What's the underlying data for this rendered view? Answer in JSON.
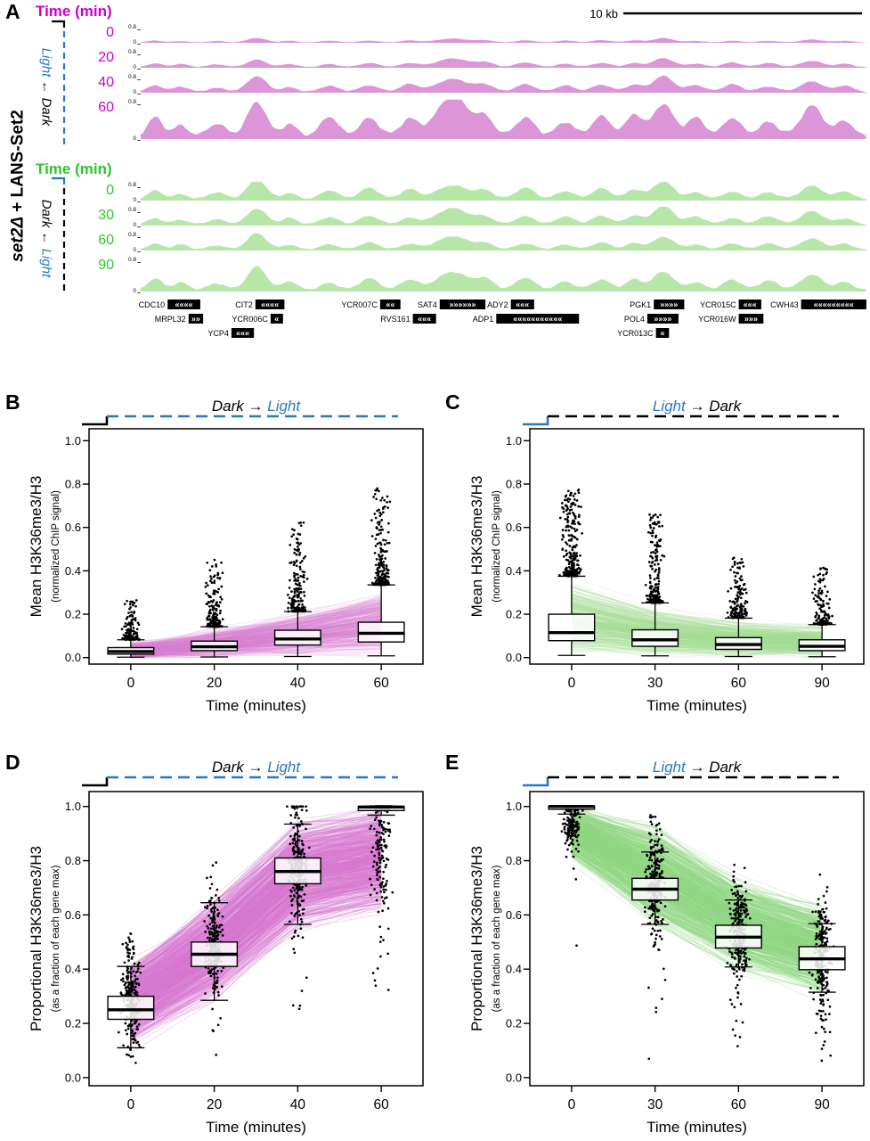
{
  "colors": {
    "magenta_fill": "#DC95D6",
    "magenta_text": "#CC00CC",
    "green_fill": "#B6E7A9",
    "green_text": "#2EC42E",
    "blue": "#2878C8",
    "black": "#000000",
    "pink_links_light": "rgba(219,131,213,0.16)",
    "pink_links_strong": "rgba(216,118,210,0.30)",
    "green_links_light": "rgba(165,222,152,0.18)",
    "green_links_strong": "rgba(146,214,134,0.30)"
  },
  "panel_a": {
    "label": "A",
    "strain": {
      "italic": "set2Δ",
      "rest": " + LANS-Set2"
    },
    "scale_bar": "10 kb",
    "sections": [
      {
        "time_header": "Time (min)",
        "times": [
          "0",
          "20",
          "40",
          "60"
        ],
        "transition": {
          "first": "Light",
          "arrow": "←",
          "second": "Dark"
        },
        "ymax": "0.8",
        "ymin": "0"
      },
      {
        "time_header": "Time (min)",
        "times": [
          "0",
          "30",
          "60",
          "90"
        ],
        "transition": {
          "first": "Dark",
          "arrow": "←",
          "second": "Light"
        },
        "ymax": "0.8",
        "ymin": "0"
      }
    ],
    "track_profile": {
      "peaks": [
        [
          0.02,
          0.45,
          0.01
        ],
        [
          0.055,
          0.3,
          0.01
        ],
        [
          0.105,
          0.32,
          0.012
        ],
        [
          0.16,
          1.0,
          0.013
        ],
        [
          0.205,
          0.35,
          0.01
        ],
        [
          0.26,
          0.4,
          0.012
        ],
        [
          0.315,
          0.5,
          0.013
        ],
        [
          0.37,
          0.45,
          0.012
        ],
        [
          0.43,
          0.85,
          0.022
        ],
        [
          0.475,
          0.45,
          0.012
        ],
        [
          0.53,
          0.5,
          0.013
        ],
        [
          0.585,
          0.4,
          0.012
        ],
        [
          0.635,
          0.55,
          0.013
        ],
        [
          0.68,
          0.45,
          0.011
        ],
        [
          0.72,
          0.95,
          0.014
        ],
        [
          0.765,
          0.4,
          0.012
        ],
        [
          0.815,
          0.45,
          0.012
        ],
        [
          0.865,
          0.4,
          0.013
        ],
        [
          0.925,
          0.7,
          0.015
        ],
        [
          0.97,
          0.4,
          0.011
        ]
      ],
      "amps_dark_to_light": [
        0.22,
        0.45,
        0.72,
        1.0
      ],
      "amps_light_to_dark": [
        1.0,
        0.85,
        0.72,
        0.6
      ]
    },
    "genes": [
      {
        "name": "CDC10",
        "dir": "left",
        "row": 0,
        "x": 0.037,
        "w": 0.045
      },
      {
        "name": "CIT2",
        "dir": "left",
        "row": 0,
        "x": 0.158,
        "w": 0.04
      },
      {
        "name": "YCR007C",
        "dir": "left",
        "row": 0,
        "x": 0.33,
        "w": 0.028
      },
      {
        "name": "SAT4",
        "dir": "right",
        "row": 0,
        "x": 0.412,
        "w": 0.063
      },
      {
        "name": "ADY2",
        "dir": "left",
        "row": 0,
        "x": 0.51,
        "w": 0.032
      },
      {
        "name": "PGK1",
        "dir": "right",
        "row": 0,
        "x": 0.707,
        "w": 0.042
      },
      {
        "name": "YCR015C",
        "dir": "left",
        "row": 0,
        "x": 0.824,
        "w": 0.031
      },
      {
        "name": "CWH43",
        "dir": "left",
        "row": 0,
        "x": 0.91,
        "w": 0.09
      },
      {
        "name": "MRPL32",
        "dir": "right",
        "row": 1,
        "x": 0.066,
        "w": 0.02
      },
      {
        "name": "YCR006C",
        "dir": "left",
        "row": 1,
        "x": 0.179,
        "w": 0.017
      },
      {
        "name": "RVS161",
        "dir": "left",
        "row": 1,
        "x": 0.375,
        "w": 0.032
      },
      {
        "name": "ADP1",
        "dir": "left",
        "row": 1,
        "x": 0.49,
        "w": 0.114
      },
      {
        "name": "POL4",
        "dir": "right",
        "row": 1,
        "x": 0.698,
        "w": 0.043
      },
      {
        "name": "YCR016W",
        "dir": "right",
        "row": 1,
        "x": 0.824,
        "w": 0.034
      },
      {
        "name": "YCP4",
        "dir": "left",
        "row": 2,
        "x": 0.125,
        "w": 0.031
      },
      {
        "name": "YCR013C",
        "dir": "left",
        "row": 2,
        "x": 0.71,
        "w": 0.018
      }
    ]
  },
  "chart_data": [
    {
      "panel": "B",
      "type": "boxplot",
      "title": {
        "first": "Dark",
        "arrow": "→",
        "second": "Light",
        "first_blue": false,
        "second_blue": true
      },
      "bracket": {
        "tail": "black",
        "dash": "blue"
      },
      "ylabel": "Mean H3K36me3/H3",
      "ylabel2": "(normalized ChIP signal)",
      "xlabel": "Time (minutes)",
      "categories": [
        "0",
        "20",
        "40",
        "60"
      ],
      "yticks": [
        "0.0",
        "0.2",
        "0.4",
        "0.6",
        "0.8",
        "1.0"
      ],
      "ylim": [
        -0.03,
        1.055
      ],
      "links": {
        "n": 430,
        "color_key": "pink_links_light",
        "noise": 0.015
      },
      "boxes": [
        {
          "lo": 0.002,
          "q1": 0.016,
          "median": 0.028,
          "q3": 0.046,
          "hi": 0.082,
          "band": [
            0.0,
            0.055
          ],
          "points": {
            "style": "above",
            "n": 140,
            "max": 0.27,
            "decay": 3.2,
            "spread": 12
          }
        },
        {
          "lo": 0.003,
          "q1": 0.032,
          "median": 0.05,
          "q3": 0.076,
          "hi": 0.142,
          "band": [
            0.005,
            0.12
          ],
          "points": {
            "style": "above",
            "n": 180,
            "max": 0.45,
            "decay": 3.2,
            "spread": 13
          }
        },
        {
          "lo": 0.005,
          "q1": 0.058,
          "median": 0.086,
          "q3": 0.126,
          "hi": 0.212,
          "band": [
            0.01,
            0.2
          ],
          "points": {
            "style": "above",
            "n": 210,
            "max": 0.62,
            "decay": 3.2,
            "spread": 13
          }
        },
        {
          "lo": 0.008,
          "q1": 0.072,
          "median": 0.112,
          "q3": 0.163,
          "hi": 0.335,
          "band": [
            0.015,
            0.3
          ],
          "points": {
            "style": "above",
            "n": 240,
            "max": 0.78,
            "decay": 3.4,
            "spread": 14
          }
        }
      ]
    },
    {
      "panel": "C",
      "type": "boxplot",
      "title": {
        "first": "Light",
        "arrow": "→",
        "second": "Dark",
        "first_blue": true,
        "second_blue": false
      },
      "bracket": {
        "tail": "blue",
        "dash": "black"
      },
      "ylabel": "Mean H3K36me3/H3",
      "ylabel2": "(normalized ChIP signal)",
      "xlabel": "Time (minutes)",
      "categories": [
        "0",
        "30",
        "60",
        "90"
      ],
      "yticks": [
        "0.0",
        "0.2",
        "0.4",
        "0.6",
        "0.8",
        "1.0"
      ],
      "ylim": [
        -0.03,
        1.055
      ],
      "links": {
        "n": 430,
        "color_key": "green_links_light",
        "noise": 0.015
      },
      "boxes": [
        {
          "lo": 0.01,
          "q1": 0.078,
          "median": 0.115,
          "q3": 0.2,
          "hi": 0.375,
          "band": [
            0.02,
            0.34
          ],
          "points": {
            "style": "above",
            "n": 280,
            "max": 0.78,
            "decay": 3.0,
            "spread": 14
          }
        },
        {
          "lo": 0.008,
          "q1": 0.052,
          "median": 0.082,
          "q3": 0.128,
          "hi": 0.252,
          "band": [
            0.012,
            0.22
          ],
          "points": {
            "style": "above",
            "n": 230,
            "max": 0.66,
            "decay": 3.2,
            "spread": 13
          }
        },
        {
          "lo": 0.005,
          "q1": 0.038,
          "median": 0.06,
          "q3": 0.092,
          "hi": 0.182,
          "band": [
            0.01,
            0.16
          ],
          "points": {
            "style": "above",
            "n": 180,
            "max": 0.46,
            "decay": 3.2,
            "spread": 13
          }
        },
        {
          "lo": 0.004,
          "q1": 0.032,
          "median": 0.052,
          "q3": 0.082,
          "hi": 0.152,
          "band": [
            0.008,
            0.135
          ],
          "points": {
            "style": "above",
            "n": 160,
            "max": 0.42,
            "decay": 3.2,
            "spread": 13
          }
        }
      ]
    },
    {
      "panel": "D",
      "type": "boxplot",
      "title": {
        "first": "Dark",
        "arrow": "→",
        "second": "Light",
        "first_blue": false,
        "second_blue": true
      },
      "bracket": {
        "tail": "black",
        "dash": "blue"
      },
      "ylabel": "Proportional H3K36me3/H3",
      "ylabel2": "(as a fraction of each gene max)",
      "xlabel": "Time (minutes)",
      "categories": [
        "0",
        "20",
        "40",
        "60"
      ],
      "yticks": [
        "0.0",
        "0.2",
        "0.4",
        "0.6",
        "0.8",
        "1.0"
      ],
      "ylim": [
        -0.03,
        1.055
      ],
      "links": {
        "n": 620,
        "color_key": "pink_links_strong",
        "noise": 0.02
      },
      "boxes": [
        {
          "lo": 0.11,
          "q1": 0.215,
          "median": 0.25,
          "q3": 0.3,
          "hi": 0.41,
          "band": [
            0.13,
            0.42
          ],
          "points": {
            "style": "cloud",
            "n": 230,
            "mean": 0.3,
            "sd": 0.09,
            "min": 0.02,
            "max": 0.57,
            "tail": 0.03,
            "spread": 15
          }
        },
        {
          "lo": 0.285,
          "q1": 0.41,
          "median": 0.455,
          "q3": 0.5,
          "hi": 0.645,
          "band": [
            0.3,
            0.66
          ],
          "points": {
            "style": "cloud",
            "n": 230,
            "mean": 0.5,
            "sd": 0.1,
            "min": 0.06,
            "max": 0.8,
            "tail": 0.04,
            "spread": 15
          }
        },
        {
          "lo": 0.565,
          "q1": 0.715,
          "median": 0.76,
          "q3": 0.81,
          "hi": 0.935,
          "band": [
            0.55,
            0.95
          ],
          "points": {
            "style": "cloud",
            "n": 240,
            "mean": 0.78,
            "sd": 0.1,
            "min": 0.2,
            "max": 1.0,
            "tail": 0.07,
            "at_max": 0.05,
            "spread": 15
          }
        },
        {
          "lo": 0.968,
          "q1": 0.985,
          "median": 0.998,
          "q3": 1.0,
          "hi": 1.0,
          "band": [
            0.62,
            1.0
          ],
          "points": {
            "style": "cloud",
            "n": 290,
            "mean": 0.88,
            "sd": 0.13,
            "min": 0.3,
            "max": 1.0,
            "tail": 0.1,
            "at_max": 0.42,
            "spread": 15
          }
        }
      ]
    },
    {
      "panel": "E",
      "type": "boxplot",
      "title": {
        "first": "Light",
        "arrow": "→",
        "second": "Dark",
        "first_blue": true,
        "second_blue": false
      },
      "bracket": {
        "tail": "blue",
        "dash": "black"
      },
      "ylabel": "Proportional H3K36me3/H3",
      "ylabel2": "(as a fraction of each gene max)",
      "xlabel": "Time (minutes)",
      "categories": [
        "0",
        "30",
        "60",
        "90"
      ],
      "yticks": [
        "0.0",
        "0.2",
        "0.4",
        "0.6",
        "0.8",
        "1.0"
      ],
      "ylim": [
        -0.03,
        1.055
      ],
      "links": {
        "n": 620,
        "color_key": "green_links_strong",
        "noise": 0.02
      },
      "boxes": [
        {
          "lo": 0.972,
          "q1": 0.99,
          "median": 1.0,
          "q3": 1.0,
          "hi": 1.0,
          "band": [
            0.82,
            1.0
          ],
          "points": {
            "style": "cloud",
            "n": 260,
            "mean": 0.94,
            "sd": 0.055,
            "min": 0.35,
            "max": 1.0,
            "tail": 0.03,
            "at_max": 0.45,
            "spread": 15
          }
        },
        {
          "lo": 0.565,
          "q1": 0.655,
          "median": 0.695,
          "q3": 0.735,
          "hi": 0.832,
          "band": [
            0.56,
            0.93
          ],
          "points": {
            "style": "cloud",
            "n": 250,
            "mean": 0.72,
            "sd": 0.095,
            "min": 0.06,
            "max": 0.97,
            "tail": 0.04,
            "spread": 15
          }
        },
        {
          "lo": 0.408,
          "q1": 0.478,
          "median": 0.518,
          "q3": 0.562,
          "hi": 0.655,
          "band": [
            0.4,
            0.73
          ],
          "points": {
            "style": "cloud",
            "n": 250,
            "mean": 0.54,
            "sd": 0.1,
            "min": 0.08,
            "max": 0.86,
            "tail": 0.05,
            "spread": 15
          }
        },
        {
          "lo": 0.315,
          "q1": 0.398,
          "median": 0.438,
          "q3": 0.483,
          "hi": 0.568,
          "band": [
            0.3,
            0.63
          ],
          "points": {
            "style": "cloud",
            "n": 250,
            "mean": 0.46,
            "sd": 0.1,
            "min": 0.05,
            "max": 0.76,
            "tail": 0.06,
            "spread": 15
          }
        }
      ]
    }
  ]
}
